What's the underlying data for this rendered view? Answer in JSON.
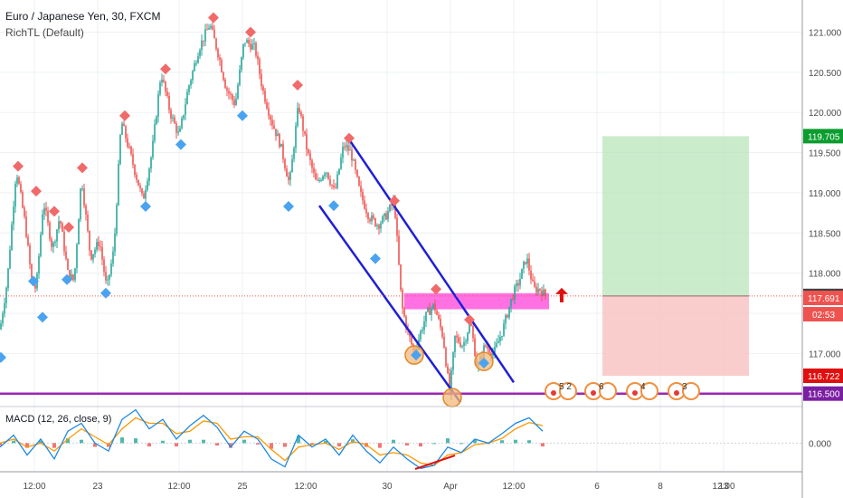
{
  "header": {
    "title": "Euro / Japanese Yen, 30, FXCM",
    "indicator": "RichTL (Default)"
  },
  "macd_label": "MACD (12, 26, close, 9)",
  "colors": {
    "bull": "#26a69a",
    "bear": "#ef5350",
    "channel": "#1f1fd6",
    "support": "#9c27b0",
    "zone": "#ff4ddb",
    "diamond_red": "#f06a6a",
    "diamond_blue": "#4aa3f0",
    "target": "#b9e6b9",
    "stop": "#f9c0c0",
    "macd_line": "#1e88e5",
    "signal_line": "#ff9800"
  },
  "chart_data": {
    "type": "candlestick",
    "symbol": "Euro / Japanese Yen",
    "timeframe": "30",
    "source": "FXCM",
    "ylim": [
      116.35,
      121.4
    ],
    "y_ticks": [
      "121.000",
      "120.500",
      "120.000",
      "119.500",
      "119.000",
      "118.500",
      "118.000",
      "117.500",
      "117.000"
    ],
    "y_tick_values": [
      121.0,
      120.5,
      120.0,
      119.5,
      119.0,
      118.5,
      118.0,
      117.5,
      117.0
    ],
    "x_ticks": [
      "12:00",
      "23",
      "12:00",
      "25",
      "12:00",
      "30",
      "Apr",
      "12:00",
      "6",
      "8",
      "12:00",
      "13"
    ],
    "price_path": [
      [
        0,
        117.3
      ],
      [
        8,
        117.9
      ],
      [
        18,
        119.3
      ],
      [
        28,
        118.6
      ],
      [
        35,
        117.9
      ],
      [
        40,
        117.8
      ],
      [
        48,
        118.9
      ],
      [
        58,
        118.3
      ],
      [
        66,
        118.7
      ],
      [
        75,
        118.0
      ],
      [
        82,
        117.9
      ],
      [
        90,
        119.2
      ],
      [
        100,
        118.2
      ],
      [
        110,
        118.4
      ],
      [
        118,
        117.8
      ],
      [
        126,
        118.3
      ],
      [
        134,
        119.9
      ],
      [
        146,
        119.4
      ],
      [
        158,
        118.9
      ],
      [
        168,
        119.5
      ],
      [
        178,
        120.5
      ],
      [
        188,
        120.0
      ],
      [
        198,
        119.7
      ],
      [
        208,
        120.3
      ],
      [
        220,
        120.8
      ],
      [
        232,
        121.1
      ],
      [
        242,
        120.7
      ],
      [
        250,
        120.3
      ],
      [
        260,
        120.1
      ],
      [
        270,
        120.9
      ],
      [
        282,
        120.8
      ],
      [
        290,
        120.3
      ],
      [
        300,
        119.9
      ],
      [
        310,
        119.6
      ],
      [
        320,
        119.1
      ],
      [
        330,
        120.1
      ],
      [
        340,
        119.5
      ],
      [
        350,
        119.1
      ],
      [
        360,
        119.3
      ],
      [
        370,
        119.0
      ],
      [
        380,
        119.6
      ],
      [
        388,
        119.5
      ],
      [
        398,
        119.0
      ],
      [
        408,
        118.7
      ],
      [
        418,
        118.6
      ],
      [
        426,
        118.7
      ],
      [
        436,
        118.9
      ],
      [
        444,
        117.6
      ],
      [
        450,
        117.3
      ],
      [
        458,
        117.0
      ],
      [
        466,
        117.3
      ],
      [
        472,
        117.5
      ],
      [
        480,
        117.6
      ],
      [
        490,
        117.2
      ],
      [
        497,
        116.5
      ],
      [
        503,
        117.2
      ],
      [
        512,
        117.1
      ],
      [
        520,
        117.4
      ],
      [
        528,
        116.8
      ],
      [
        536,
        117.1
      ],
      [
        546,
        117.0
      ],
      [
        556,
        117.3
      ],
      [
        566,
        117.7
      ],
      [
        574,
        117.9
      ],
      [
        582,
        118.2
      ],
      [
        590,
        117.8
      ],
      [
        597,
        117.8
      ],
      [
        603,
        117.72
      ]
    ],
    "last_price": 117.716,
    "price_labels": [
      {
        "value": 119.705,
        "label": "119.705",
        "color": "#0b9d2e"
      },
      {
        "value": 117.716,
        "label": "117.716",
        "color": "#424242"
      },
      {
        "value": 117.691,
        "label": "117.691",
        "color": "#ef5350"
      },
      {
        "value": 116.722,
        "label": "116.722",
        "color": "#e01010"
      },
      {
        "value": 116.5,
        "label": "116.500",
        "color": "#7b1fa2"
      }
    ],
    "countdown": "02:53",
    "support_level": 116.5,
    "channel": {
      "upper": [
        [
          385,
          119.68
        ],
        [
          568,
          116.64
        ]
      ],
      "lower": [
        [
          353,
          118.84
        ],
        [
          509,
          116.39
        ]
      ]
    },
    "zone": {
      "x0": 447,
      "x1": 607,
      "y_top": 117.75,
      "y_bottom": 117.55
    },
    "position": {
      "x0": 666,
      "x1": 828,
      "target": 119.705,
      "entry": 117.716,
      "stop": 116.722
    },
    "diamonds_high": [
      [
        20,
        119.33
      ],
      [
        40,
        119.02
      ],
      [
        60,
        118.77
      ],
      [
        76,
        118.57
      ],
      [
        91,
        119.31
      ],
      [
        138,
        119.96
      ],
      [
        183,
        120.54
      ],
      [
        236,
        121.18
      ],
      [
        277,
        121.0
      ],
      [
        329,
        120.34
      ],
      [
        386,
        119.68
      ],
      [
        436,
        118.9
      ],
      [
        482,
        117.8
      ],
      [
        519,
        117.42
      ]
    ],
    "diamonds_low": [
      [
        1,
        116.95
      ],
      [
        37,
        117.9
      ],
      [
        47,
        117.45
      ],
      [
        74,
        117.92
      ],
      [
        117,
        117.75
      ],
      [
        161,
        118.83
      ],
      [
        200,
        119.6
      ],
      [
        268,
        119.96
      ],
      [
        319,
        118.83
      ],
      [
        369,
        118.84
      ],
      [
        415,
        118.18
      ],
      [
        460,
        116.98
      ],
      [
        535,
        116.88
      ]
    ],
    "circles": [
      [
        458,
        116.98
      ],
      [
        500,
        116.45
      ],
      [
        535,
        116.9
      ]
    ],
    "divergence_line": [
      [
        459,
        518
      ],
      [
        503,
        503
      ]
    ],
    "macd": {
      "ylim": [
        -0.35,
        0.45
      ],
      "zero_label": "0.000",
      "macd_line": [
        [
          0,
          -0.05
        ],
        [
          15,
          0.1
        ],
        [
          30,
          -0.15
        ],
        [
          45,
          0.05
        ],
        [
          60,
          -0.2
        ],
        [
          75,
          0.15
        ],
        [
          90,
          0.25
        ],
        [
          105,
          0.0
        ],
        [
          120,
          -0.1
        ],
        [
          135,
          0.3
        ],
        [
          150,
          0.42
        ],
        [
          165,
          0.18
        ],
        [
          180,
          0.3
        ],
        [
          195,
          0.05
        ],
        [
          210,
          0.22
        ],
        [
          225,
          0.35
        ],
        [
          240,
          0.2
        ],
        [
          255,
          -0.05
        ],
        [
          270,
          0.15
        ],
        [
          285,
          0.05
        ],
        [
          300,
          -0.2
        ],
        [
          315,
          -0.3
        ],
        [
          330,
          0.1
        ],
        [
          345,
          -0.05
        ],
        [
          360,
          0.05
        ],
        [
          375,
          -0.15
        ],
        [
          390,
          0.1
        ],
        [
          405,
          -0.1
        ],
        [
          420,
          -0.25
        ],
        [
          435,
          -0.05
        ],
        [
          450,
          -0.2
        ],
        [
          465,
          -0.32
        ],
        [
          480,
          -0.28
        ],
        [
          495,
          -0.05
        ],
        [
          510,
          -0.12
        ],
        [
          525,
          0.05
        ],
        [
          540,
          0.0
        ],
        [
          555,
          0.12
        ],
        [
          570,
          0.25
        ],
        [
          585,
          0.32
        ],
        [
          600,
          0.15
        ]
      ],
      "signal_line": [
        [
          0,
          0.0
        ],
        [
          15,
          0.05
        ],
        [
          30,
          -0.05
        ],
        [
          45,
          0.0
        ],
        [
          60,
          -0.1
        ],
        [
          75,
          0.05
        ],
        [
          90,
          0.18
        ],
        [
          105,
          0.08
        ],
        [
          120,
          -0.02
        ],
        [
          135,
          0.18
        ],
        [
          150,
          0.32
        ],
        [
          165,
          0.25
        ],
        [
          180,
          0.25
        ],
        [
          195,
          0.12
        ],
        [
          210,
          0.15
        ],
        [
          225,
          0.28
        ],
        [
          240,
          0.25
        ],
        [
          255,
          0.05
        ],
        [
          270,
          0.08
        ],
        [
          285,
          0.08
        ],
        [
          300,
          -0.08
        ],
        [
          315,
          -0.22
        ],
        [
          330,
          -0.05
        ],
        [
          345,
          -0.02
        ],
        [
          360,
          0.0
        ],
        [
          375,
          -0.08
        ],
        [
          390,
          0.02
        ],
        [
          405,
          -0.02
        ],
        [
          420,
          -0.15
        ],
        [
          435,
          -0.12
        ],
        [
          450,
          -0.15
        ],
        [
          465,
          -0.25
        ],
        [
          480,
          -0.28
        ],
        [
          495,
          -0.15
        ],
        [
          510,
          -0.12
        ],
        [
          525,
          -0.02
        ],
        [
          540,
          0.0
        ],
        [
          555,
          0.06
        ],
        [
          570,
          0.18
        ],
        [
          585,
          0.26
        ],
        [
          600,
          0.22
        ]
      ]
    },
    "countdown_widgets": [
      {
        "x": 620,
        "label": "5 2"
      },
      {
        "x": 664,
        "label": "6"
      },
      {
        "x": 710,
        "label": "4"
      },
      {
        "x": 756,
        "label": "3"
      }
    ]
  }
}
